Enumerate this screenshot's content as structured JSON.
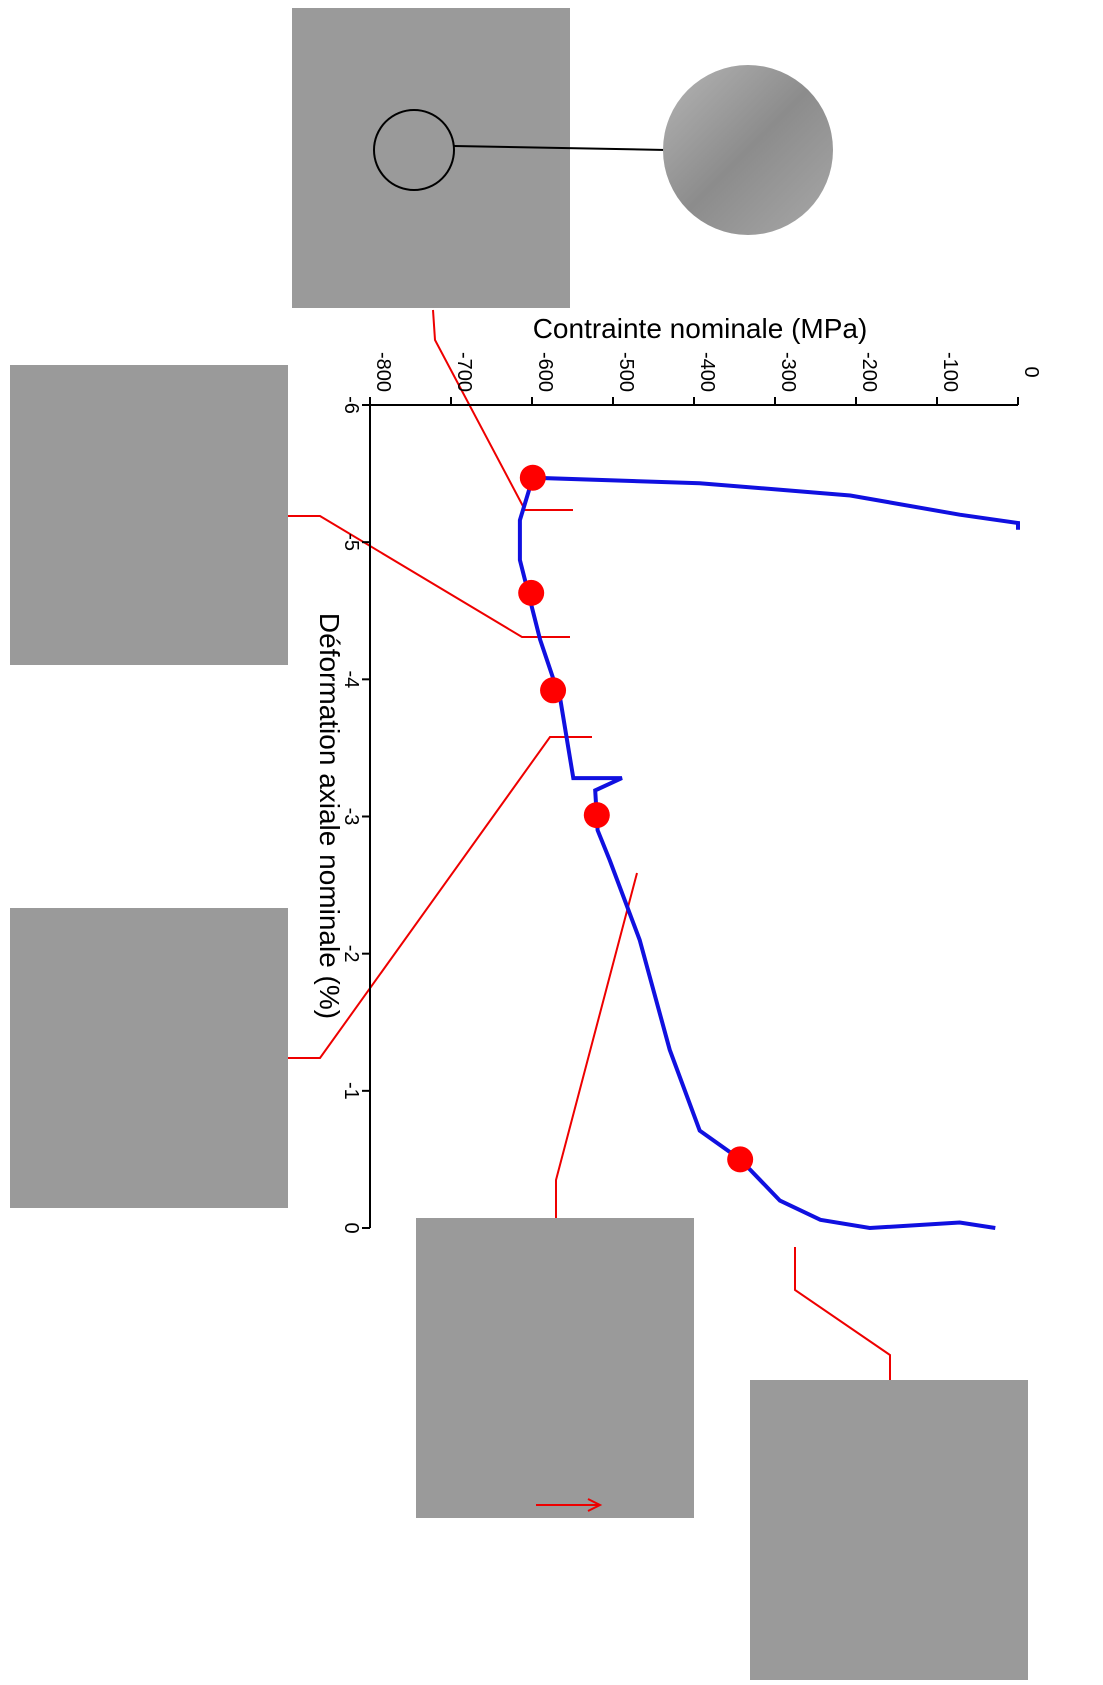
{
  "chart_data": {
    "type": "line",
    "xlabel": "Déformation axiale nominale (%)",
    "ylabel": "Contrainte nominale (MPa)",
    "xlim": [
      -6,
      0
    ],
    "xticks": [
      -6,
      -5,
      -4,
      -3,
      -2,
      -1,
      0
    ],
    "ylim": [
      -800,
      0
    ],
    "yticks": [
      -800,
      -700,
      -600,
      -500,
      -400,
      -300,
      -200,
      -100,
      0
    ],
    "series": [
      {
        "name": "courbe",
        "color": "#1010e0",
        "x": [
          0,
          -0.04,
          0,
          -0.06,
          -0.2,
          -0.5,
          -0.71,
          -1.3,
          -2.1,
          -2.68,
          -2.9,
          -3.19,
          -3.28,
          -3.28,
          -3.85,
          -4.29,
          -4.87,
          -5.16,
          -5.47,
          -5.43,
          -5.34,
          -5.2,
          -5.14,
          -5.09
        ],
        "y": [
          -28,
          -72,
          -183,
          -244,
          -294,
          -343,
          -393,
          -430,
          -467,
          -504,
          -519,
          -522,
          -489,
          -549,
          -565,
          -590,
          -615,
          -615,
          -599,
          -393,
          -207,
          -72,
          0,
          0
        ]
      },
      {
        "name": "points",
        "color": "#ff0000",
        "x": [
          -0.5,
          -3.01,
          -3.92,
          -4.63,
          -5.47
        ],
        "y": [
          -343,
          -520,
          -574,
          -601,
          -599
        ]
      }
    ]
  }
}
